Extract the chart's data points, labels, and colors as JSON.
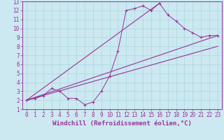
{
  "xlabel": "Windchill (Refroidissement éolien,°C)",
  "background_color": "#cce8f0",
  "line_color": "#993399",
  "xlim": [
    -0.5,
    23.5
  ],
  "ylim": [
    1,
    13
  ],
  "xticks": [
    0,
    1,
    2,
    3,
    4,
    5,
    6,
    7,
    8,
    9,
    10,
    11,
    12,
    13,
    14,
    15,
    16,
    17,
    18,
    19,
    20,
    21,
    22,
    23
  ],
  "yticks": [
    1,
    2,
    3,
    4,
    5,
    6,
    7,
    8,
    9,
    10,
    11,
    12,
    13
  ],
  "line1_x": [
    0,
    1,
    2,
    3,
    4,
    5,
    6,
    7,
    8,
    9,
    10,
    11,
    12,
    13,
    14,
    15,
    16,
    17,
    18,
    19,
    20,
    21,
    22,
    23
  ],
  "line1_y": [
    2.0,
    2.2,
    2.5,
    3.3,
    3.0,
    2.2,
    2.2,
    1.5,
    1.8,
    3.0,
    4.7,
    7.5,
    12.0,
    12.2,
    12.5,
    12.0,
    12.8,
    11.5,
    10.8,
    10.0,
    9.5,
    9.0,
    9.2,
    9.2
  ],
  "line2_x": [
    0,
    23
  ],
  "line2_y": [
    2.0,
    9.2
  ],
  "line3_x": [
    0,
    16
  ],
  "line3_y": [
    2.0,
    12.8
  ],
  "line4_x": [
    0,
    23
  ],
  "line4_y": [
    2.0,
    8.0
  ],
  "xlabel_fontsize": 6.5,
  "tick_fontsize": 5.5,
  "grid_color": "#aad8e0"
}
